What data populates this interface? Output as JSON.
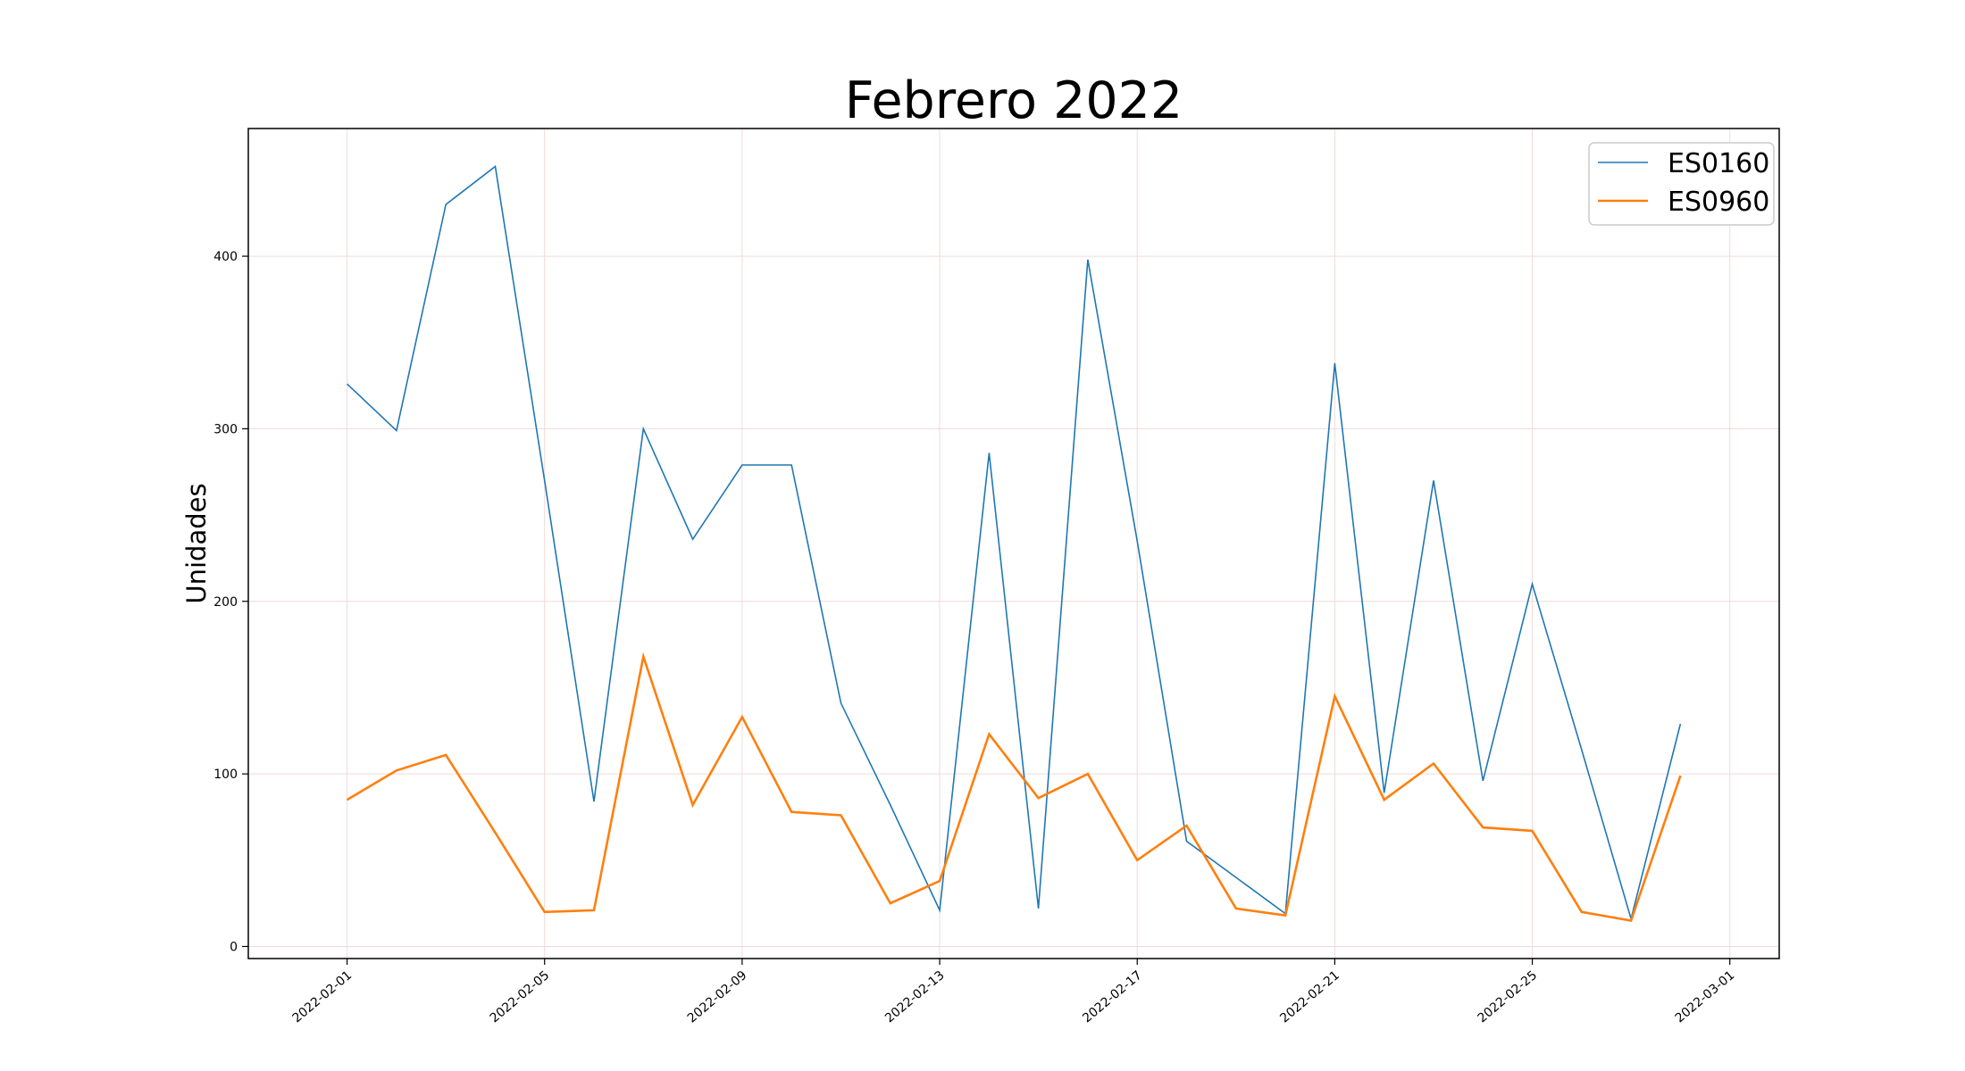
{
  "chart_data": {
    "type": "line",
    "title": "Febrero 2022",
    "xlabel": "",
    "ylabel": "Unidades",
    "x": [
      "2022-02-01",
      "2022-02-02",
      "2022-02-03",
      "2022-02-04",
      "2022-02-05",
      "2022-02-06",
      "2022-02-07",
      "2022-02-08",
      "2022-02-09",
      "2022-02-10",
      "2022-02-11",
      "2022-02-12",
      "2022-02-13",
      "2022-02-14",
      "2022-02-15",
      "2022-02-16",
      "2022-02-17",
      "2022-02-18",
      "2022-02-19",
      "2022-02-20",
      "2022-02-21",
      "2022-02-22",
      "2022-02-23",
      "2022-02-24",
      "2022-02-25",
      "2022-02-26",
      "2022-02-27",
      "2022-02-28"
    ],
    "xlim": [
      "2022-01-30",
      "2022-03-02"
    ],
    "ylim": [
      -7,
      474
    ],
    "x_ticks": [
      "2022-02-01",
      "2022-02-05",
      "2022-02-09",
      "2022-02-13",
      "2022-02-17",
      "2022-02-21",
      "2022-02-25",
      "2022-03-01"
    ],
    "y_ticks": [
      0,
      100,
      200,
      300,
      400
    ],
    "grid": true,
    "legend_position": "top-right",
    "series": [
      {
        "name": "ES0160",
        "color": "#1f77b4",
        "values": [
          326,
          299,
          430,
          452,
          270,
          84,
          300,
          236,
          279,
          279,
          141,
          82,
          21,
          286,
          22,
          398,
          235,
          61,
          40,
          19,
          338,
          89,
          270,
          96,
          210,
          114,
          16,
          129
        ]
      },
      {
        "name": "ES0960",
        "color": "#ff7f0e",
        "values": [
          85,
          102,
          111,
          66,
          20,
          21,
          168,
          82,
          133,
          78,
          76,
          25,
          38,
          123,
          86,
          100,
          50,
          70,
          22,
          18,
          145,
          85,
          106,
          69,
          67,
          20,
          15,
          99
        ]
      }
    ]
  }
}
